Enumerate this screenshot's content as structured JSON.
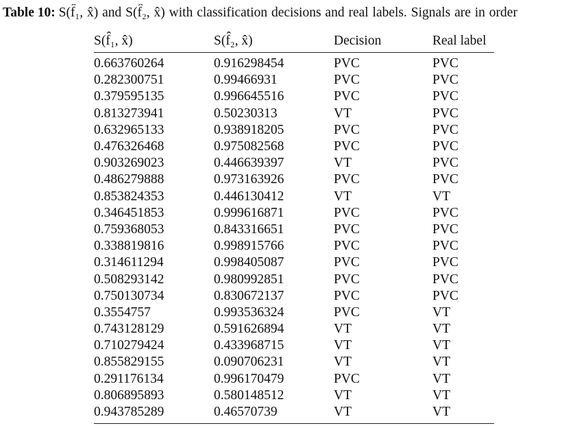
{
  "caption": {
    "label": "Table 10:",
    "text": "S(f̂₁, x̂) and S(f̂₂, x̂) with classification decisions and real labels. Signals are in order"
  },
  "table": {
    "headers": [
      "S(f̂₁, x̂)",
      "S(f̂₂, x̂)",
      "Decision",
      "Real label"
    ],
    "rows": [
      [
        "0.663760264",
        "0.916298454",
        "PVC",
        "PVC"
      ],
      [
        "0.282300751",
        "0.99466931",
        "PVC",
        "PVC"
      ],
      [
        "0.379595135",
        "0.996645516",
        "PVC",
        "PVC"
      ],
      [
        "0.813273941",
        "0.50230313",
        "VT",
        "PVC"
      ],
      [
        "0.632965133",
        "0.938918205",
        "PVC",
        "PVC"
      ],
      [
        "0.476326468",
        "0.975082568",
        "PVC",
        "PVC"
      ],
      [
        "0.903269023",
        "0.446639397",
        "VT",
        "PVC"
      ],
      [
        "0.486279888",
        "0.973163926",
        "PVC",
        "PVC"
      ],
      [
        "0.853824353",
        "0.446130412",
        "VT",
        "VT"
      ],
      [
        "0.346451853",
        "0.999616871",
        "PVC",
        "PVC"
      ],
      [
        "0.759368053",
        "0.843316651",
        "PVC",
        "PVC"
      ],
      [
        "0.338819816",
        "0.998915766",
        "PVC",
        "PVC"
      ],
      [
        "0.314611294",
        "0.998405087",
        "PVC",
        "PVC"
      ],
      [
        "0.508293142",
        "0.980992851",
        "PVC",
        "PVC"
      ],
      [
        "0.750130734",
        "0.830672137",
        "PVC",
        "PVC"
      ],
      [
        "0.3554757",
        "0.993536324",
        "PVC",
        "VT"
      ],
      [
        "0.743128129",
        "0.591626894",
        "VT",
        "VT"
      ],
      [
        "0.710279424",
        "0.433968715",
        "VT",
        "VT"
      ],
      [
        "0.855829155",
        "0.090706231",
        "VT",
        "VT"
      ],
      [
        "0.291176134",
        "0.996170479",
        "PVC",
        "VT"
      ],
      [
        "0.806895893",
        "0.580148512",
        "VT",
        "VT"
      ],
      [
        "0.943785289",
        "0.46570739",
        "VT",
        "VT"
      ]
    ]
  }
}
